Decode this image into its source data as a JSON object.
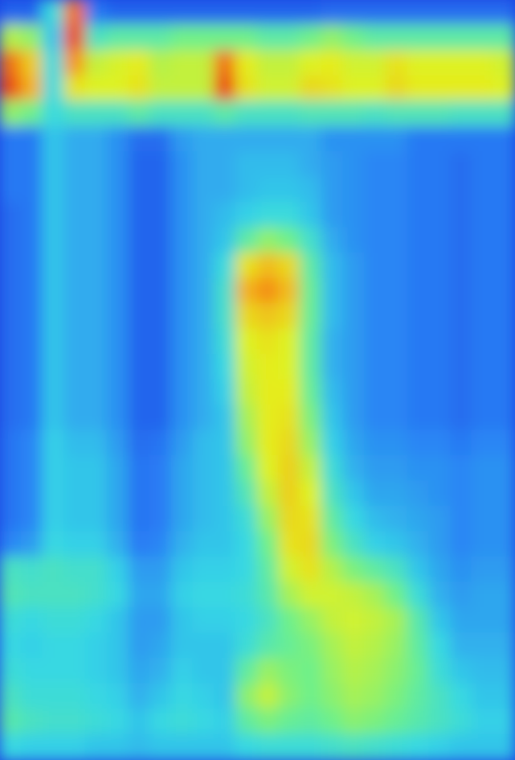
{
  "chart_data": {
    "type": "heatmap",
    "title": "",
    "xlabel": "",
    "ylabel": "",
    "colorscale": [
      "#1a3fe0",
      "#2a7ff5",
      "#35d7e6",
      "#6ef08a",
      "#e3f21f",
      "#f7a21a",
      "#e62a14"
    ],
    "grid": false,
    "legend": "none",
    "levels_note_scale": [
      0,
      1
    ],
    "columns": 24,
    "rows": 30,
    "values": [
      [
        0.1,
        0.1,
        0.35,
        0.9,
        0.15,
        0.1,
        0.1,
        0.1,
        0.1,
        0.1,
        0.1,
        0.1,
        0.1,
        0.1,
        0.1,
        0.12,
        0.12,
        0.12,
        0.12,
        0.12,
        0.12,
        0.12,
        0.12,
        0.12
      ],
      [
        0.6,
        0.55,
        0.3,
        0.95,
        0.4,
        0.45,
        0.45,
        0.45,
        0.5,
        0.5,
        0.5,
        0.5,
        0.45,
        0.45,
        0.5,
        0.55,
        0.5,
        0.45,
        0.45,
        0.45,
        0.45,
        0.45,
        0.45,
        0.45
      ],
      [
        0.9,
        0.75,
        0.35,
        0.85,
        0.62,
        0.65,
        0.68,
        0.6,
        0.62,
        0.62,
        0.9,
        0.68,
        0.62,
        0.62,
        0.66,
        0.68,
        0.64,
        0.64,
        0.7,
        0.66,
        0.66,
        0.66,
        0.66,
        0.64
      ],
      [
        0.95,
        0.8,
        0.35,
        0.7,
        0.66,
        0.66,
        0.7,
        0.62,
        0.62,
        0.62,
        0.96,
        0.7,
        0.64,
        0.64,
        0.72,
        0.7,
        0.66,
        0.66,
        0.72,
        0.68,
        0.68,
        0.68,
        0.68,
        0.66
      ],
      [
        0.55,
        0.5,
        0.35,
        0.4,
        0.4,
        0.4,
        0.45,
        0.4,
        0.4,
        0.4,
        0.45,
        0.4,
        0.4,
        0.4,
        0.42,
        0.42,
        0.42,
        0.4,
        0.42,
        0.42,
        0.42,
        0.4,
        0.4,
        0.4
      ],
      [
        0.15,
        0.15,
        0.3,
        0.25,
        0.25,
        0.2,
        0.12,
        0.12,
        0.22,
        0.25,
        0.25,
        0.25,
        0.25,
        0.25,
        0.25,
        0.2,
        0.2,
        0.2,
        0.2,
        0.15,
        0.15,
        0.15,
        0.15,
        0.15
      ],
      [
        0.15,
        0.15,
        0.3,
        0.25,
        0.25,
        0.2,
        0.1,
        0.1,
        0.2,
        0.25,
        0.25,
        0.28,
        0.28,
        0.28,
        0.25,
        0.22,
        0.2,
        0.18,
        0.18,
        0.15,
        0.15,
        0.12,
        0.15,
        0.15
      ],
      [
        0.15,
        0.15,
        0.3,
        0.25,
        0.25,
        0.2,
        0.1,
        0.1,
        0.2,
        0.25,
        0.25,
        0.28,
        0.3,
        0.3,
        0.28,
        0.22,
        0.2,
        0.18,
        0.18,
        0.15,
        0.15,
        0.12,
        0.15,
        0.15
      ],
      [
        0.12,
        0.15,
        0.3,
        0.25,
        0.25,
        0.2,
        0.1,
        0.1,
        0.2,
        0.25,
        0.28,
        0.32,
        0.35,
        0.35,
        0.3,
        0.22,
        0.2,
        0.18,
        0.18,
        0.15,
        0.15,
        0.12,
        0.15,
        0.15
      ],
      [
        0.12,
        0.15,
        0.3,
        0.25,
        0.25,
        0.2,
        0.1,
        0.1,
        0.2,
        0.25,
        0.3,
        0.45,
        0.55,
        0.5,
        0.38,
        0.25,
        0.2,
        0.18,
        0.18,
        0.15,
        0.15,
        0.12,
        0.15,
        0.15
      ],
      [
        0.12,
        0.15,
        0.3,
        0.25,
        0.25,
        0.2,
        0.1,
        0.1,
        0.2,
        0.25,
        0.35,
        0.7,
        0.78,
        0.72,
        0.45,
        0.28,
        0.22,
        0.18,
        0.18,
        0.15,
        0.15,
        0.12,
        0.15,
        0.15
      ],
      [
        0.12,
        0.15,
        0.3,
        0.25,
        0.25,
        0.2,
        0.1,
        0.1,
        0.2,
        0.25,
        0.38,
        0.8,
        0.86,
        0.78,
        0.48,
        0.28,
        0.22,
        0.18,
        0.18,
        0.15,
        0.15,
        0.12,
        0.15,
        0.15
      ],
      [
        0.12,
        0.15,
        0.3,
        0.25,
        0.25,
        0.2,
        0.1,
        0.1,
        0.2,
        0.25,
        0.38,
        0.72,
        0.76,
        0.72,
        0.48,
        0.28,
        0.22,
        0.18,
        0.18,
        0.15,
        0.15,
        0.12,
        0.15,
        0.15
      ],
      [
        0.12,
        0.15,
        0.3,
        0.25,
        0.25,
        0.2,
        0.1,
        0.1,
        0.2,
        0.25,
        0.36,
        0.66,
        0.7,
        0.66,
        0.46,
        0.26,
        0.22,
        0.18,
        0.18,
        0.15,
        0.15,
        0.12,
        0.15,
        0.15
      ],
      [
        0.12,
        0.15,
        0.3,
        0.25,
        0.25,
        0.2,
        0.1,
        0.1,
        0.2,
        0.25,
        0.34,
        0.64,
        0.68,
        0.66,
        0.46,
        0.26,
        0.22,
        0.18,
        0.18,
        0.15,
        0.15,
        0.12,
        0.15,
        0.15
      ],
      [
        0.12,
        0.15,
        0.3,
        0.25,
        0.25,
        0.2,
        0.1,
        0.1,
        0.2,
        0.25,
        0.32,
        0.62,
        0.68,
        0.68,
        0.48,
        0.28,
        0.22,
        0.18,
        0.18,
        0.15,
        0.15,
        0.12,
        0.15,
        0.15
      ],
      [
        0.12,
        0.15,
        0.3,
        0.25,
        0.25,
        0.2,
        0.1,
        0.1,
        0.2,
        0.25,
        0.3,
        0.58,
        0.68,
        0.7,
        0.52,
        0.3,
        0.22,
        0.18,
        0.18,
        0.15,
        0.15,
        0.12,
        0.15,
        0.15
      ],
      [
        0.14,
        0.18,
        0.32,
        0.28,
        0.28,
        0.22,
        0.12,
        0.14,
        0.22,
        0.28,
        0.3,
        0.55,
        0.68,
        0.72,
        0.56,
        0.32,
        0.24,
        0.2,
        0.2,
        0.18,
        0.18,
        0.15,
        0.18,
        0.18
      ],
      [
        0.14,
        0.18,
        0.32,
        0.3,
        0.3,
        0.24,
        0.14,
        0.16,
        0.24,
        0.28,
        0.3,
        0.48,
        0.66,
        0.74,
        0.62,
        0.36,
        0.26,
        0.22,
        0.22,
        0.2,
        0.2,
        0.18,
        0.2,
        0.2
      ],
      [
        0.14,
        0.18,
        0.32,
        0.3,
        0.3,
        0.24,
        0.14,
        0.16,
        0.24,
        0.28,
        0.3,
        0.42,
        0.62,
        0.74,
        0.66,
        0.4,
        0.3,
        0.24,
        0.24,
        0.22,
        0.2,
        0.18,
        0.2,
        0.2
      ],
      [
        0.14,
        0.18,
        0.32,
        0.3,
        0.3,
        0.24,
        0.14,
        0.16,
        0.24,
        0.28,
        0.3,
        0.36,
        0.56,
        0.72,
        0.7,
        0.46,
        0.34,
        0.28,
        0.26,
        0.24,
        0.22,
        0.18,
        0.2,
        0.2
      ],
      [
        0.18,
        0.22,
        0.34,
        0.32,
        0.32,
        0.26,
        0.16,
        0.18,
        0.26,
        0.3,
        0.3,
        0.34,
        0.5,
        0.7,
        0.72,
        0.52,
        0.4,
        0.32,
        0.3,
        0.26,
        0.22,
        0.18,
        0.2,
        0.2
      ],
      [
        0.4,
        0.38,
        0.4,
        0.38,
        0.38,
        0.32,
        0.22,
        0.22,
        0.3,
        0.32,
        0.32,
        0.34,
        0.46,
        0.64,
        0.7,
        0.6,
        0.52,
        0.46,
        0.4,
        0.3,
        0.24,
        0.2,
        0.22,
        0.22
      ],
      [
        0.42,
        0.4,
        0.4,
        0.4,
        0.38,
        0.34,
        0.24,
        0.24,
        0.32,
        0.34,
        0.34,
        0.36,
        0.44,
        0.58,
        0.64,
        0.64,
        0.62,
        0.58,
        0.5,
        0.36,
        0.26,
        0.22,
        0.24,
        0.24
      ],
      [
        0.36,
        0.34,
        0.36,
        0.36,
        0.34,
        0.3,
        0.22,
        0.22,
        0.3,
        0.32,
        0.32,
        0.34,
        0.4,
        0.5,
        0.56,
        0.62,
        0.64,
        0.62,
        0.58,
        0.44,
        0.3,
        0.24,
        0.24,
        0.24
      ],
      [
        0.34,
        0.32,
        0.34,
        0.34,
        0.32,
        0.3,
        0.22,
        0.24,
        0.3,
        0.3,
        0.3,
        0.36,
        0.44,
        0.48,
        0.52,
        0.58,
        0.62,
        0.6,
        0.56,
        0.46,
        0.34,
        0.26,
        0.26,
        0.26
      ],
      [
        0.36,
        0.34,
        0.34,
        0.34,
        0.32,
        0.3,
        0.24,
        0.26,
        0.32,
        0.3,
        0.3,
        0.46,
        0.56,
        0.52,
        0.5,
        0.56,
        0.6,
        0.58,
        0.54,
        0.48,
        0.36,
        0.3,
        0.28,
        0.28
      ],
      [
        0.4,
        0.36,
        0.36,
        0.36,
        0.34,
        0.32,
        0.26,
        0.3,
        0.34,
        0.32,
        0.3,
        0.54,
        0.62,
        0.54,
        0.5,
        0.54,
        0.58,
        0.56,
        0.52,
        0.46,
        0.4,
        0.34,
        0.3,
        0.3
      ],
      [
        0.44,
        0.4,
        0.38,
        0.38,
        0.36,
        0.34,
        0.3,
        0.34,
        0.36,
        0.34,
        0.32,
        0.46,
        0.52,
        0.48,
        0.46,
        0.5,
        0.54,
        0.52,
        0.48,
        0.44,
        0.4,
        0.36,
        0.32,
        0.32
      ],
      [
        0.34,
        0.32,
        0.32,
        0.32,
        0.3,
        0.3,
        0.28,
        0.3,
        0.3,
        0.3,
        0.3,
        0.34,
        0.36,
        0.36,
        0.36,
        0.38,
        0.4,
        0.38,
        0.36,
        0.34,
        0.32,
        0.3,
        0.3,
        0.3
      ]
    ]
  }
}
